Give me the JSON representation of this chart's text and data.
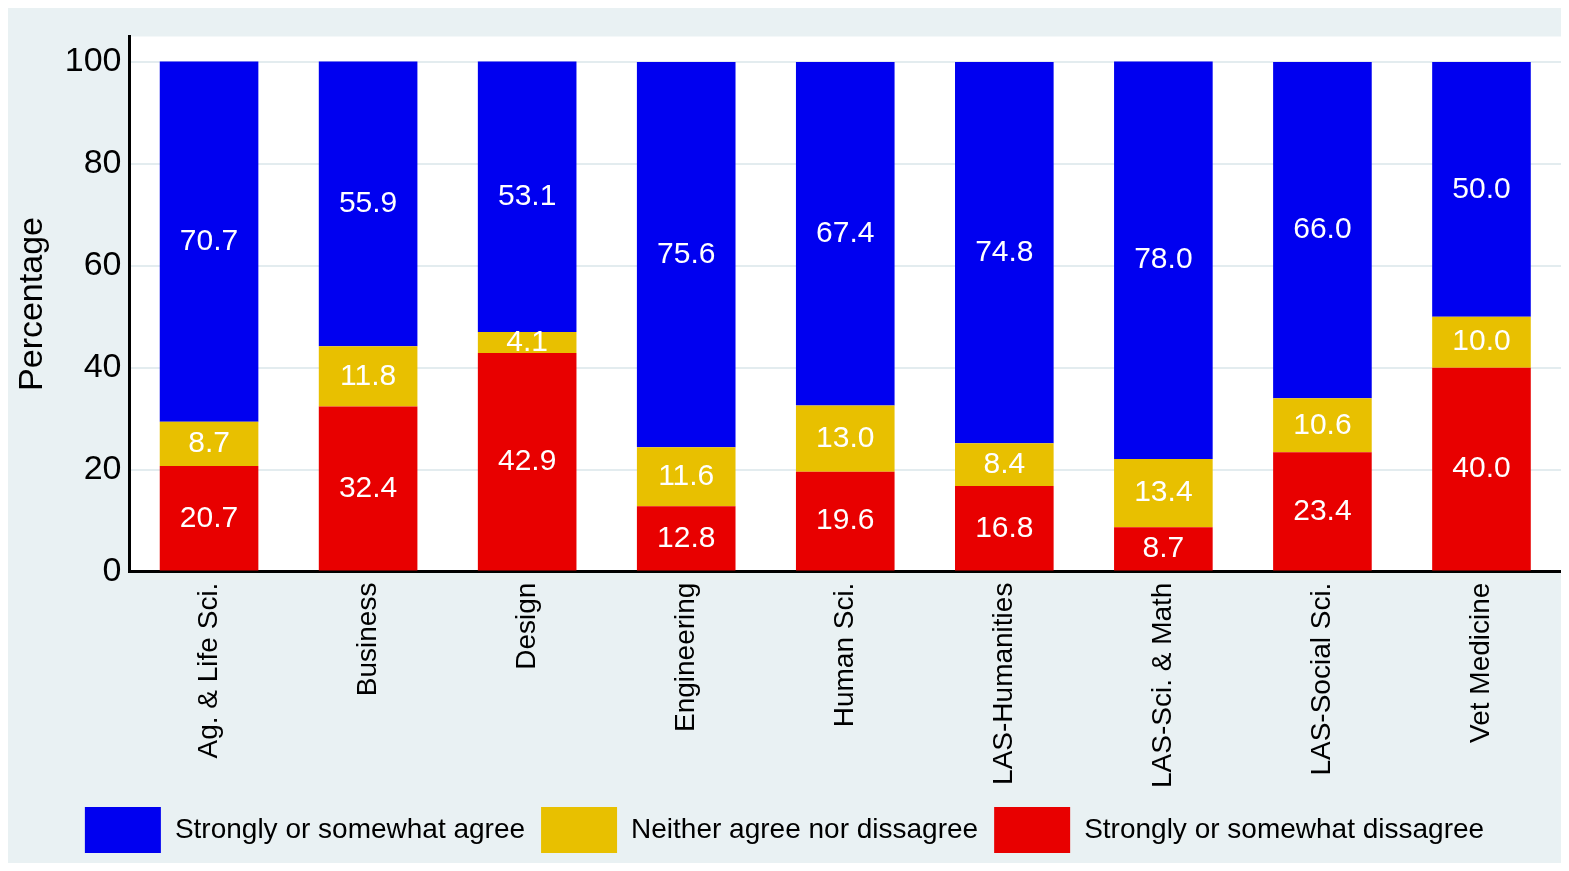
{
  "chart_data": {
    "type": "bar",
    "stacked": true,
    "ylabel": "Percentage",
    "categories": [
      "Ag. & Life Sci.",
      "Business",
      "Design",
      "Engineering",
      "Human Sci.",
      "LAS-Humanities",
      "LAS-Sci. & Math",
      "LAS-Social Sci.",
      "Vet Medicine"
    ],
    "series": [
      {
        "name": "Strongly or somewhat dissagree",
        "color": "#e80000",
        "values": [
          20.7,
          32.4,
          42.9,
          12.8,
          19.6,
          16.8,
          8.7,
          23.4,
          40.0
        ],
        "value_labels": [
          "20.7",
          "32.4",
          "42.9",
          "12.8",
          "19.6",
          "16.8",
          "8.7",
          "23.4",
          "40.0"
        ]
      },
      {
        "name": "Neither agree nor dissagree",
        "color": "#e8c000",
        "values": [
          8.7,
          11.8,
          4.1,
          11.6,
          13.0,
          8.4,
          13.4,
          10.6,
          10.0
        ],
        "value_labels": [
          "8.7",
          "11.8",
          "4.1",
          "11.6",
          "13.0",
          "8.4",
          "13.4",
          "10.6",
          "10.0"
        ]
      },
      {
        "name": "Strongly or somewhat agree",
        "color": "#0000f0",
        "values": [
          70.7,
          55.9,
          53.1,
          75.6,
          67.4,
          74.8,
          78.0,
          66.0,
          50.0
        ],
        "value_labels": [
          "70.7",
          "55.9",
          "53.1",
          "75.6",
          "67.4",
          "74.8",
          "78.0",
          "66.0",
          "50.0"
        ]
      }
    ],
    "ylim": [
      0,
      105
    ],
    "yticks": [
      0,
      20,
      40,
      60,
      80,
      100
    ],
    "grid": "y",
    "legend": "bottom"
  }
}
